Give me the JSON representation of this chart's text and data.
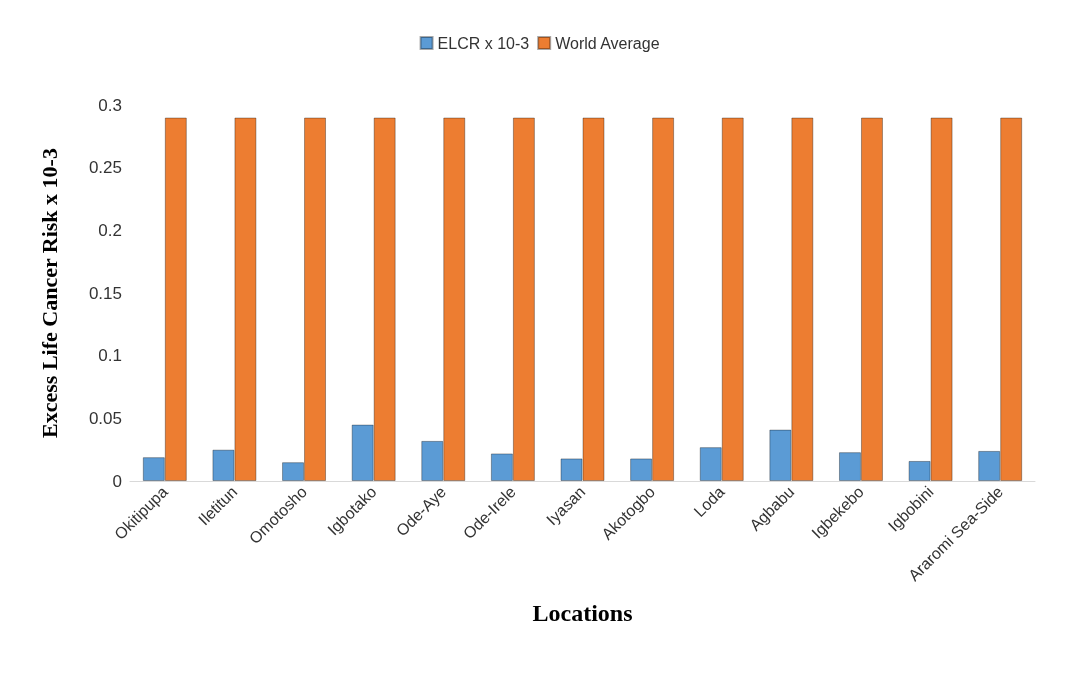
{
  "chart_data": {
    "type": "bar",
    "xlabel": "Locations",
    "ylabel": "Excess Life Cancer Risk x 10-3",
    "categories": [
      "Okitipupa",
      "Iletitun",
      "Omotosho",
      "Igbotako",
      "Ode-Aye",
      "Ode-Irele",
      "Iyasan",
      "Akotogbo",
      "Loda",
      "Agbabu",
      "Igbekebo",
      "Igbobini",
      "Araromi Sea-Side"
    ],
    "series": [
      {
        "name": "ELCR x 10-3",
        "color": "#5b9bd5",
        "values": [
          0.019,
          0.025,
          0.015,
          0.045,
          0.032,
          0.022,
          0.018,
          0.018,
          0.027,
          0.041,
          0.023,
          0.016,
          0.024
        ]
      },
      {
        "name": "World Average",
        "color": "#ed7d31",
        "values": [
          0.29,
          0.29,
          0.29,
          0.29,
          0.29,
          0.29,
          0.29,
          0.29,
          0.29,
          0.29,
          0.29,
          0.29,
          0.29
        ]
      }
    ],
    "ylim": [
      0,
      0.3
    ],
    "yticks": [
      0,
      0.05,
      0.1,
      0.15,
      0.2,
      0.25,
      0.3
    ],
    "grid": false,
    "legend": "top"
  }
}
